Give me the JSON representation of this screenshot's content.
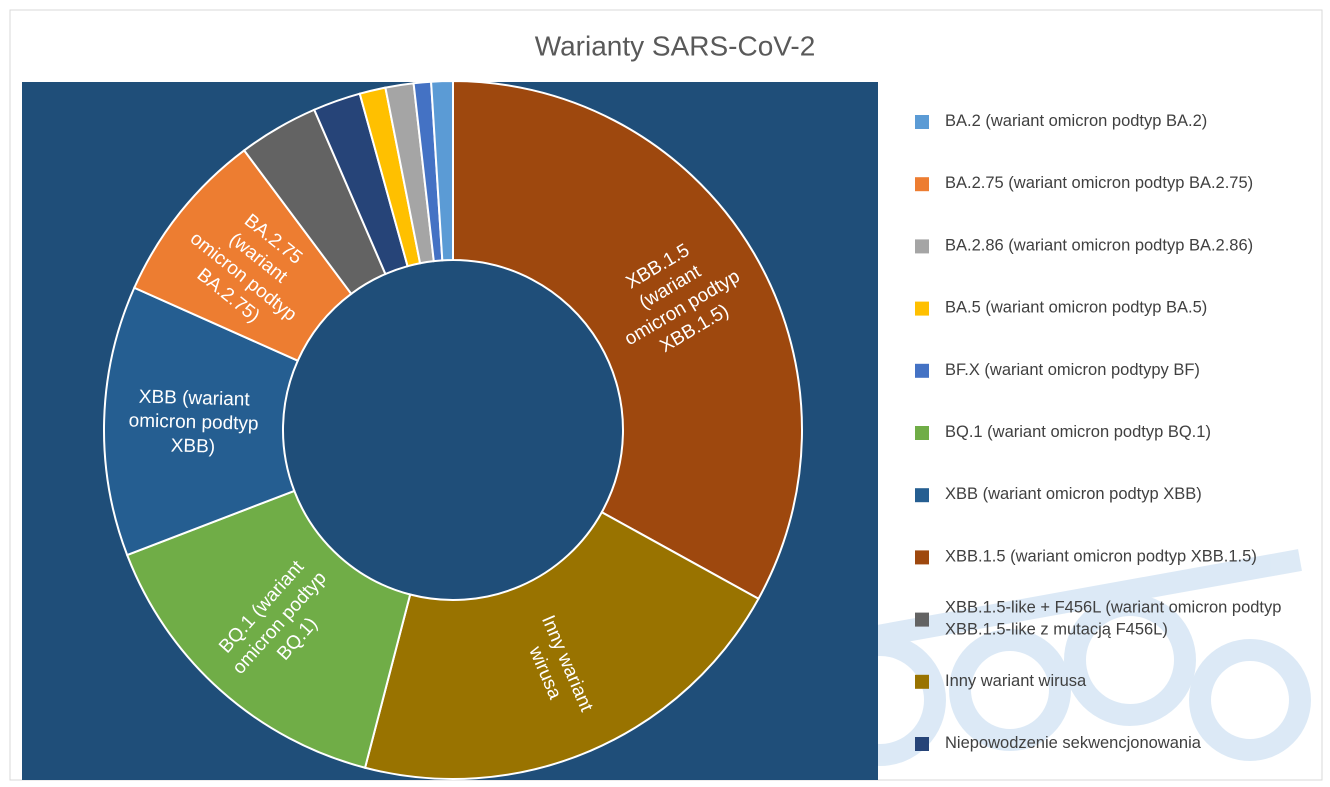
{
  "chart_data": {
    "type": "donut",
    "title": "Warianty SARS-CoV-2",
    "categories": [
      "BA.2 (wariant omicron podtyp BA.2)",
      "BA.2.75 (wariant omicron podtyp BA.2.75)",
      "BA.2.86 (wariant omicron podtyp BA.2.86)",
      "BA.5 (wariant omicron podtyp BA.5)",
      "BF.X (wariant omicron podtypy BF)",
      "BQ.1 (wariant omicron podtyp BQ.1)",
      "XBB (wariant omicron podtyp XBB)",
      "XBB.1.5 (wariant omicron podtyp XBB.1.5)",
      "XBB.1.5-like + F456L (wariant omicron podtyp XBB.1.5-like z mutacją F456L)",
      "Inny wariant wirusa",
      "Niepowodzenie sekwencjonowania"
    ],
    "values": [
      1.0,
      8.1,
      1.3,
      1.2,
      0.8,
      15.1,
      12.5,
      33.0,
      3.7,
      21.0,
      2.2
    ],
    "colors": [
      "#5b9bd5",
      "#ed7d31",
      "#a5a5a5",
      "#ffc000",
      "#4472c4",
      "#70ad47",
      "#255e91",
      "#9e480e",
      "#636363",
      "#997300",
      "#264478"
    ],
    "legend": "right"
  }
}
